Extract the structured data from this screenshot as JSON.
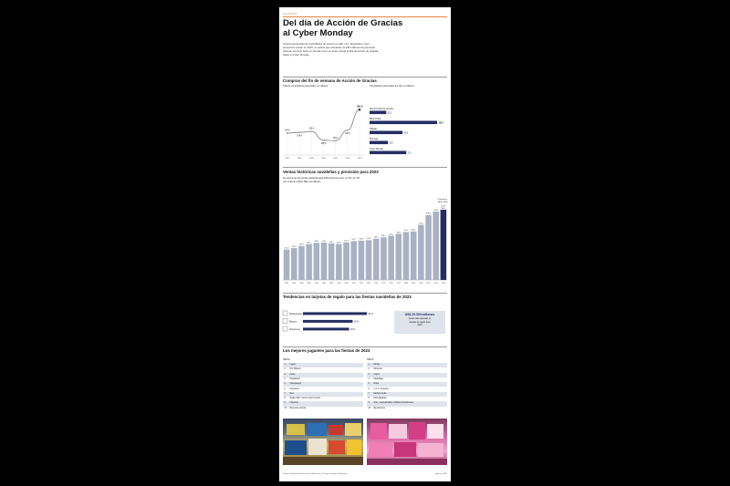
{
  "header": {
    "kicker": "ECONOMÍA",
    "title_line1": "Del día de Acción de Gracias",
    "title_line2": "al Cyber Monday",
    "intro": [
      "Inicia la temporada de festividades de invierno en EE. UU., destacado motor",
      "económico anual; en 2023, se estima que alrededor de 182 millones de personas",
      "planean comprar tanto en tiendas como en línea, desde el Día de Acción de Gracias",
      "hasta el Cyber Monday."
    ]
  },
  "section1": {
    "title": "Compras del fin de semana de Acción de Gracias",
    "left_subtitle": "Total de compradores potenciales, en millones.",
    "right_subtitle": "Compradores potenciales por día, en millones."
  },
  "section2": {
    "title": "Ventas históricas navideñas y previsión para 2023",
    "subtitle_lines": [
      "Se espera que las ventas navideñas para 2023 aumenten entre un 3% y un 4%",
      "con respecto a 2022. Miles de millones."
    ],
    "forecast_label": "Pronóstico",
    "forecast_range": "+3 % - 4 %"
  },
  "section3": {
    "title": "Tendencias en tarjetas de regalo para las fiestas navideñas de 2023",
    "callout_value": "US$ 29.300 millones",
    "callout_lines": [
      "Gasto total esperado en",
      "tarjetas de regalo para",
      "2023"
    ]
  },
  "section4": {
    "title": "Los mejores juguetes para las fiestas de 2023",
    "boys_header": "NIÑOS",
    "girls_header": "NIÑAS",
    "boys": [
      "Legos",
      "Hot Wheels",
      "Autos",
      "PlayStation",
      "Videojuegos",
      "Camiones",
      "Nerf",
      "Spider-Man / auto control remoto",
      "Pokémon",
      "Nintendo consola"
    ],
    "girls": [
      "Barbie",
      "Muñecas",
      "Legos",
      "Maquillaje",
      "Ropa",
      "L.O.L. muñecas",
      "Muñeco bebé",
      "Manualidades",
      "Arte y manualidades / Barbie Dreamhouse",
      "Electrónicos"
    ]
  },
  "footer": {
    "source": "Fuente: Federación Nacional de Minoristas | Prosper Insights & Analytics",
    "credit": "Agencia EFE"
  },
  "colors": {
    "accent_orange": "#e8833a",
    "bar_gray": "#a9b1c5",
    "bar_navy": "#252e63"
  },
  "chart_data": [
    {
      "type": "line",
      "x": [
        "2017",
        "2018",
        "2019",
        "2020",
        "2021",
        "2022",
        "2023"
      ],
      "values": [
        164.0,
        164.6,
        165.3,
        158.6,
        158.2,
        166.3,
        182.0
      ],
      "value_labels": [
        "164,0",
        "164,6",
        "165,3",
        "158,6",
        "158,2",
        "166,3",
        "182,0"
      ]
    },
    {
      "type": "bar",
      "categories": [
        "Día de Acción de Gracias",
        "Black Friday",
        "Sábado",
        "Domingo",
        "Cyber Monday"
      ],
      "values": [
        32.3,
        130.7,
        63.8,
        35.7,
        71.1
      ],
      "value_labels": [
        "32,3",
        "130,7",
        "63,8",
        "35,7",
        "71,1"
      ]
    },
    {
      "type": "bar",
      "categories": [
        "2002",
        "2003",
        "2004",
        "2005",
        "2006",
        "2007",
        "2008",
        "2009",
        "2010",
        "2011",
        "2012",
        "2013",
        "2014",
        "2015",
        "2016",
        "2017",
        "2018",
        "2019",
        "2020",
        "2021",
        "2022",
        "2023"
      ],
      "values": [
        416.4,
        436.2,
        464.3,
        491.1,
        508.2,
        513.1,
        499.7,
        492.5,
        514.4,
        532.1,
        538.8,
        545.3,
        565.5,
        584.1,
        605.2,
        630.6,
        657.1,
        665.2,
        755.4,
        888.4,
        936.3,
        962.2
      ],
      "value_labels": [
        "416,4",
        "436,2",
        "464,3",
        "491,1",
        "508,2",
        "513,1",
        "499,7",
        "492,5",
        "514,4",
        "532,1",
        "538,8",
        "545,3",
        "565,5",
        "584,1",
        "605,2",
        "630,6",
        "657,1",
        "665,2",
        "755,4",
        "888,4",
        "936,3",
        "962,2"
      ],
      "forecast_extra": {
        "category": "2023",
        "low": 957.3,
        "high": 966.6,
        "labels": [
          "957,3",
          "966,6"
        ]
      }
    },
    {
      "type": "bar",
      "categories": [
        "Restaurantes",
        "Bancos",
        "Almacenes"
      ],
      "values": [
        36,
        28,
        26
      ],
      "value_labels": [
        "36 %",
        "28 %",
        "26 %"
      ]
    }
  ]
}
